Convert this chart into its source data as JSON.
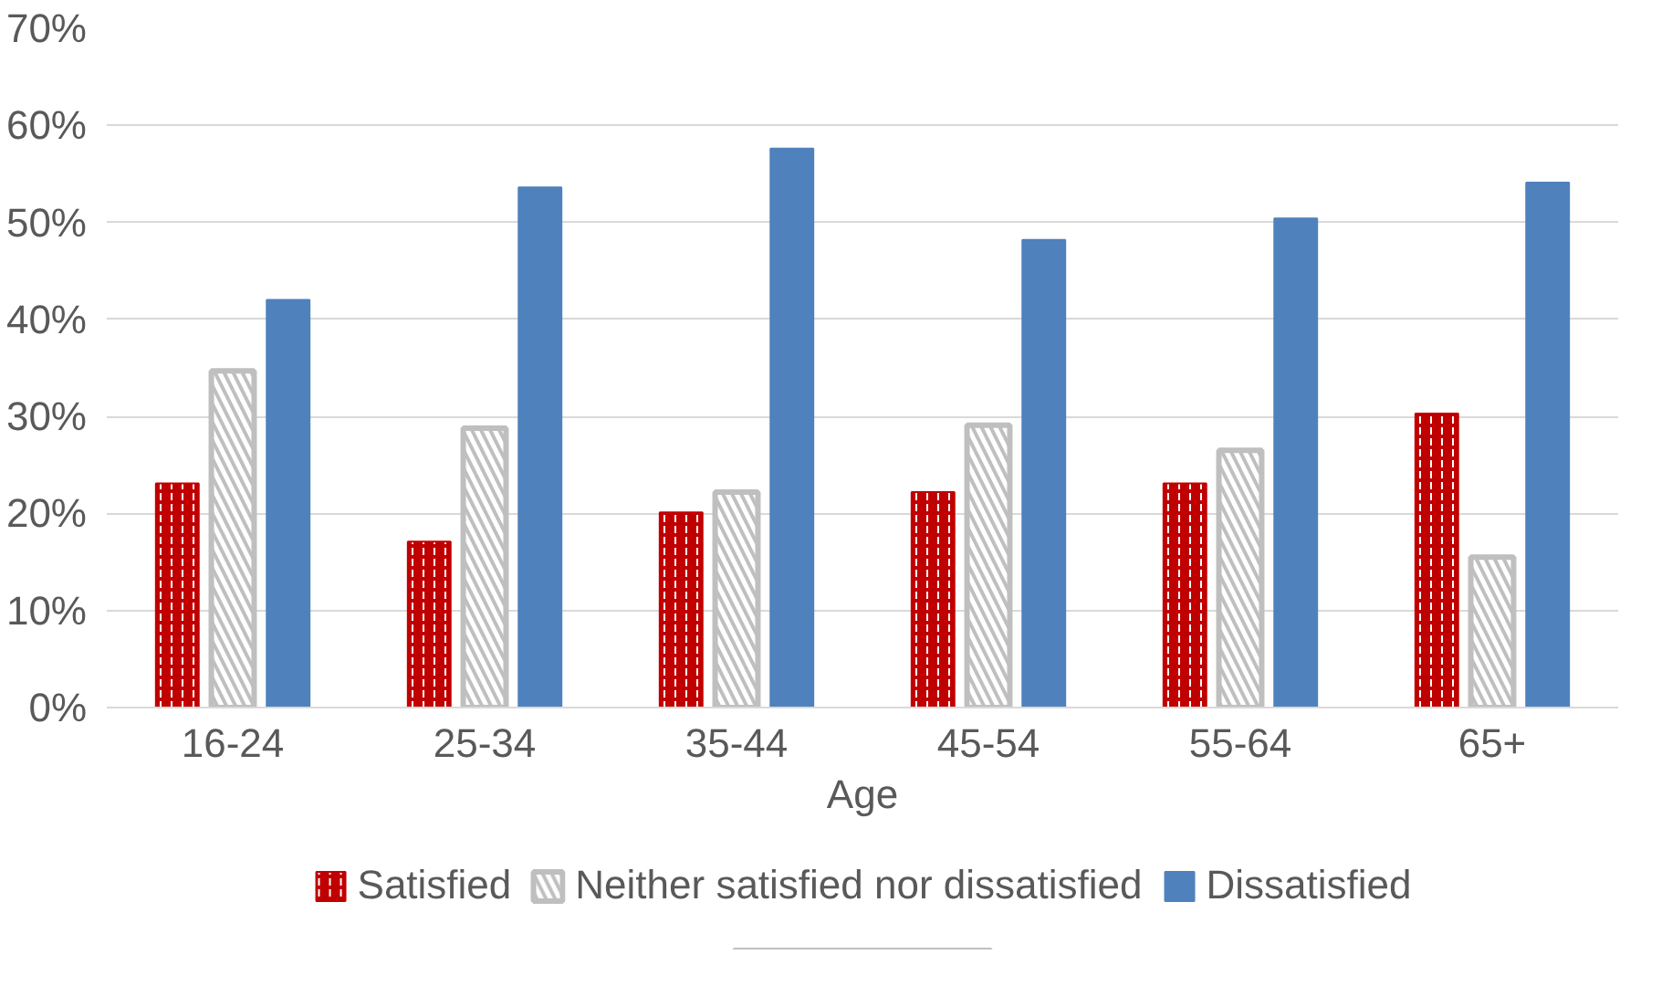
{
  "chart_data": {
    "type": "bar",
    "xlabel": "Age",
    "categories": [
      "16-24",
      "25-34",
      "35-44",
      "45-54",
      "55-64",
      "65+"
    ],
    "series": [
      {
        "name": "Satisfied",
        "color": "#c00000",
        "values": [
          23.1,
          17.1,
          20.1,
          22.2,
          23.1,
          30.3
        ]
      },
      {
        "name": "Neither satisfied nor dissatisfied",
        "color": "#bfbfbf",
        "values": [
          34.7,
          28.8,
          22.2,
          29.1,
          26.5,
          15.5
        ]
      },
      {
        "name": "Dissatisfied",
        "color": "#4f81bd",
        "values": [
          42.0,
          53.6,
          57.6,
          48.2,
          50.4,
          54.1
        ]
      }
    ],
    "ylim": [
      0,
      70
    ],
    "yticks": [
      {
        "value": 0,
        "label": "0%"
      },
      {
        "value": 10,
        "label": "10%"
      },
      {
        "value": 20,
        "label": "20%"
      },
      {
        "value": 30,
        "label": "30%"
      },
      {
        "value": 40,
        "label": "40%"
      },
      {
        "value": 50,
        "label": "50%"
      },
      {
        "value": 60,
        "label": "60%"
      },
      {
        "value": 70,
        "label": "70%"
      }
    ],
    "grid": "y",
    "legend": "bottom"
  }
}
